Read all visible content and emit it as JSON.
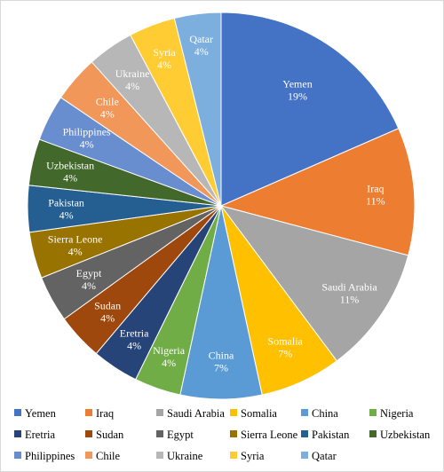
{
  "chart_data": {
    "type": "pie",
    "title": "",
    "unit": "%",
    "slices": [
      {
        "name": "Yemen",
        "value": 19,
        "label": "19%",
        "color": "#4472C4"
      },
      {
        "name": "Iraq",
        "value": 11,
        "label": "11%",
        "color": "#ED7D31"
      },
      {
        "name": "Saudi Arabia",
        "value": 11,
        "label": "11%",
        "color": "#A5A5A5"
      },
      {
        "name": "Somalia",
        "value": 7,
        "label": "7%",
        "color": "#FFC000"
      },
      {
        "name": "China",
        "value": 7,
        "label": "7%",
        "color": "#5B9BD5"
      },
      {
        "name": "Nigeria",
        "value": 4,
        "label": "4%",
        "color": "#70AD47"
      },
      {
        "name": "Eretria",
        "value": 4,
        "label": "4%",
        "color": "#264478"
      },
      {
        "name": "Sudan",
        "value": 4,
        "label": "4%",
        "color": "#9E480E"
      },
      {
        "name": "Egypt",
        "value": 4,
        "label": "4%",
        "color": "#636363"
      },
      {
        "name": "Sierra Leone",
        "value": 4,
        "label": "4%",
        "color": "#997300"
      },
      {
        "name": "Pakistan",
        "value": 4,
        "label": "4%",
        "color": "#255E91"
      },
      {
        "name": "Uzbekistan",
        "value": 4,
        "label": "4%",
        "color": "#43682B"
      },
      {
        "name": "Philippines",
        "value": 4,
        "label": "4%",
        "color": "#698ED0"
      },
      {
        "name": "Chile",
        "value": 4,
        "label": "4%",
        "color": "#F1975A"
      },
      {
        "name": "Ukraine",
        "value": 4,
        "label": "4%",
        "color": "#B7B7B7"
      },
      {
        "name": "Syria",
        "value": 4,
        "label": "4%",
        "color": "#FFCD33"
      },
      {
        "name": "Qatar",
        "value": 4,
        "label": "4%",
        "color": "#7CAFDD"
      }
    ],
    "legend": "bottom",
    "grid": false
  }
}
